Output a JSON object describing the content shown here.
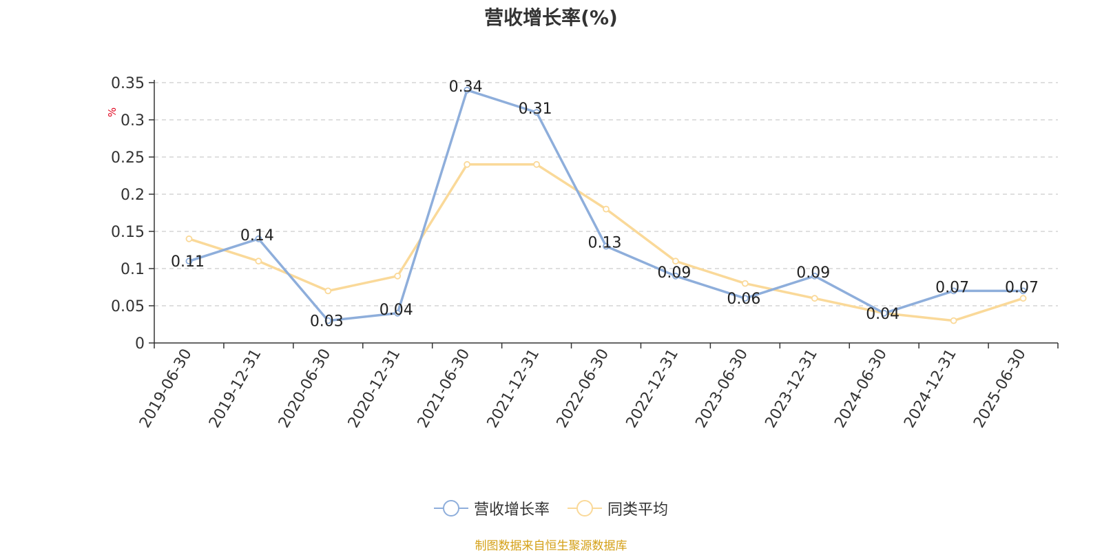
{
  "title": "营收增长率(%)",
  "source": "制图数据来自恒生聚源数据库",
  "colors": {
    "series1": "#8eaedb",
    "series2": "#fad999",
    "source": "#d4a017",
    "unit": "#e0001b"
  },
  "chart_data": {
    "type": "line",
    "title": "营收增长率(%)",
    "ylabel": "%",
    "ylim": [
      0,
      0.35
    ],
    "yticks": [
      "0",
      "0.05",
      "0.1",
      "0.15",
      "0.2",
      "0.25",
      "0.3",
      "0.35"
    ],
    "grid": true,
    "legend_position": "bottom",
    "categories": [
      "2019-06-30",
      "2019-12-31",
      "2020-06-30",
      "2020-12-31",
      "2021-06-30",
      "2021-12-31",
      "2022-06-30",
      "2022-12-31",
      "2023-06-30",
      "2023-12-31",
      "2024-06-30",
      "2024-12-31",
      "2025-06-30"
    ],
    "series": [
      {
        "name": "营收增长率",
        "color": "#8eaedb",
        "values": [
          0.11,
          0.14,
          0.03,
          0.04,
          0.34,
          0.31,
          0.13,
          0.09,
          0.06,
          0.09,
          0.04,
          0.07,
          0.07
        ],
        "labels": [
          "0.11",
          "0.14",
          "0.03",
          "0.04",
          "0.34",
          "0.31",
          "0.13",
          "0.09",
          "0.06",
          "0.09",
          "0.04",
          "0.07",
          "0.07"
        ]
      },
      {
        "name": "同类平均",
        "color": "#fad999",
        "values": [
          0.14,
          0.11,
          0.07,
          0.09,
          0.24,
          0.24,
          0.18,
          0.11,
          0.08,
          0.06,
          0.04,
          0.03,
          0.06
        ]
      }
    ]
  }
}
